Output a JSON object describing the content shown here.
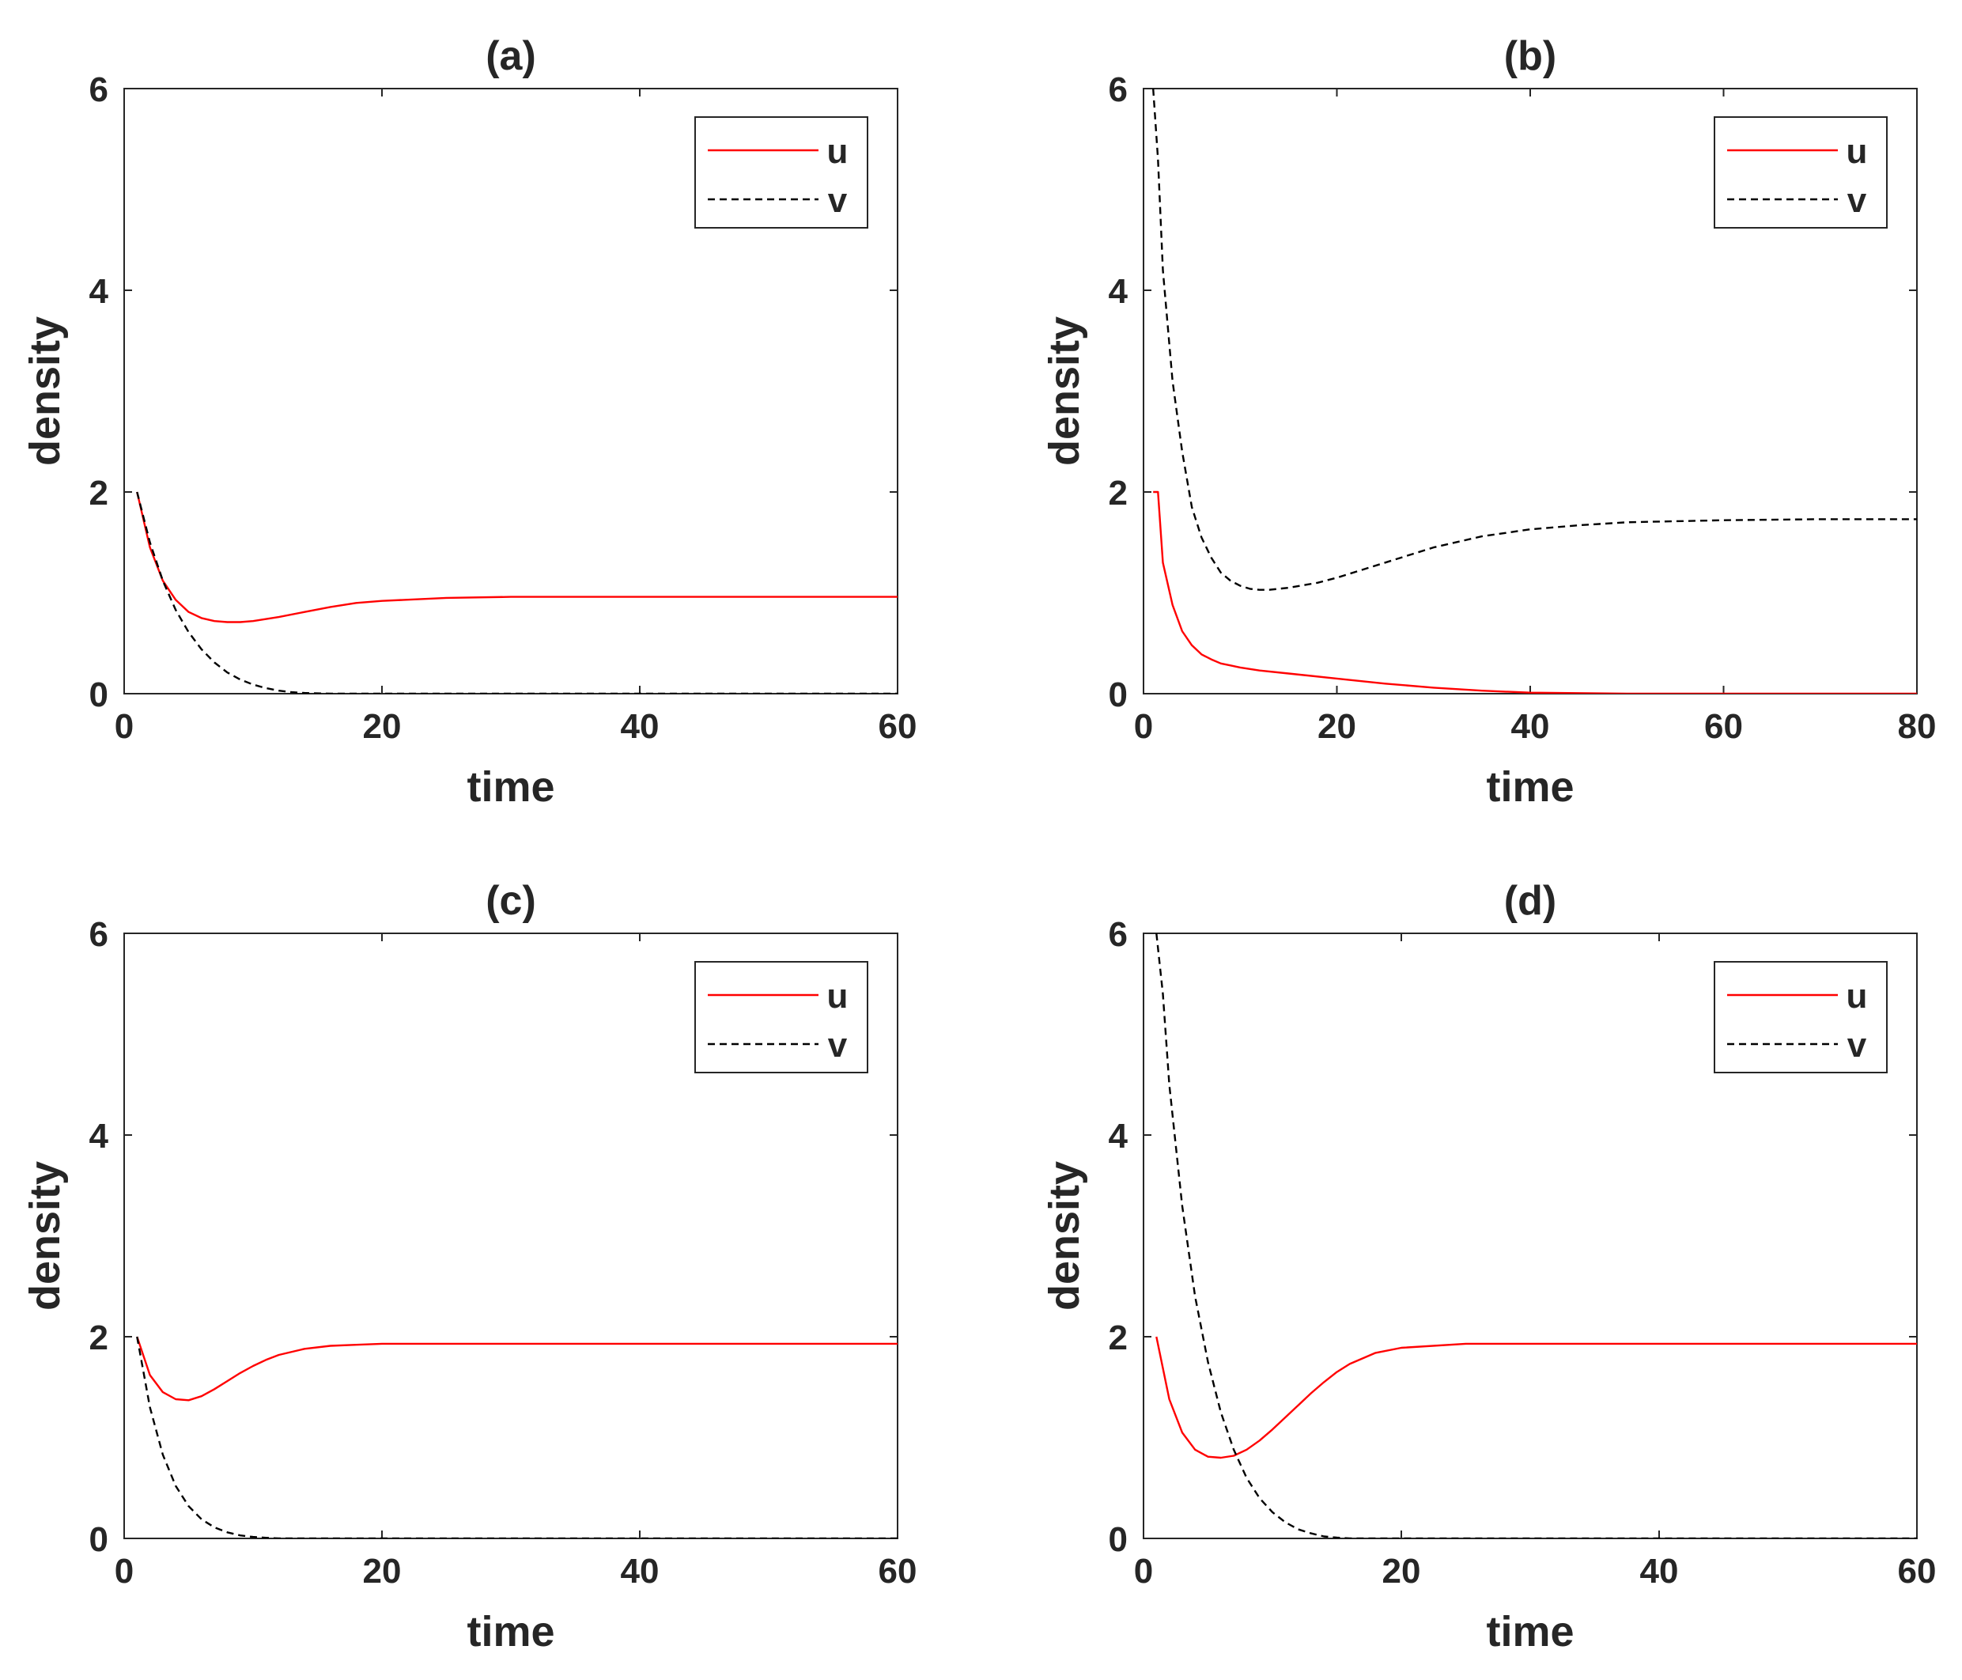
{
  "figure": {
    "layout": "2x2 grid"
  },
  "colors": {
    "u": "#ff0000",
    "v": "#000000",
    "axes": "#262626",
    "background": "#ffffff"
  },
  "chart_data": [
    {
      "id": "a",
      "type": "line",
      "title": "(a)",
      "xlabel": "time",
      "ylabel": "density",
      "xlim": [
        0,
        60
      ],
      "ylim": [
        0,
        6
      ],
      "xticks": [
        0,
        20,
        40,
        60
      ],
      "yticks": [
        0,
        2,
        4,
        6
      ],
      "xtick_labels": [
        "0",
        "20",
        "40",
        "60"
      ],
      "ytick_labels": [
        "0",
        "2",
        "4",
        "6"
      ],
      "legend": {
        "position": "top-right",
        "entries": [
          "u",
          "v"
        ]
      },
      "series": [
        {
          "name": "u",
          "style": "solid",
          "color": "#ff0000",
          "x": [
            1,
            2,
            3,
            4,
            5,
            6,
            7,
            8,
            9,
            10,
            12,
            14,
            16,
            18,
            20,
            25,
            30,
            40,
            50,
            60
          ],
          "y": [
            2.0,
            1.45,
            1.12,
            0.93,
            0.81,
            0.75,
            0.72,
            0.71,
            0.71,
            0.72,
            0.76,
            0.81,
            0.86,
            0.9,
            0.92,
            0.95,
            0.96,
            0.96,
            0.96,
            0.96
          ]
        },
        {
          "name": "v",
          "style": "dashed",
          "color": "#000000",
          "x": [
            1,
            2,
            3,
            4,
            5,
            6,
            7,
            8,
            9,
            10,
            11,
            12,
            13,
            14,
            15,
            16,
            20,
            30,
            40,
            50,
            60
          ],
          "y": [
            2.0,
            1.5,
            1.12,
            0.83,
            0.61,
            0.44,
            0.31,
            0.21,
            0.14,
            0.09,
            0.055,
            0.03,
            0.015,
            0.007,
            0.003,
            0.0,
            0.0,
            0.0,
            0.0,
            0.0,
            0.0
          ]
        }
      ]
    },
    {
      "id": "b",
      "type": "line",
      "title": "(b)",
      "xlabel": "time",
      "ylabel": "density",
      "xlim": [
        0,
        80
      ],
      "ylim": [
        0,
        6
      ],
      "xticks": [
        0,
        20,
        40,
        60,
        80
      ],
      "yticks": [
        0,
        2,
        4,
        6
      ],
      "xtick_labels": [
        "0",
        "20",
        "40",
        "60",
        "80"
      ],
      "ytick_labels": [
        "0",
        "2",
        "4",
        "6"
      ],
      "legend": {
        "position": "top-right",
        "entries": [
          "u",
          "v"
        ]
      },
      "series": [
        {
          "name": "u",
          "style": "solid",
          "color": "#ff0000",
          "x": [
            1,
            1.5,
            2,
            3,
            4,
            5,
            6,
            7,
            8,
            9,
            10,
            12,
            15,
            20,
            25,
            30,
            35,
            40,
            50,
            60,
            70,
            80
          ],
          "y": [
            2.0,
            2.0,
            1.3,
            0.88,
            0.62,
            0.48,
            0.39,
            0.34,
            0.3,
            0.28,
            0.26,
            0.23,
            0.2,
            0.15,
            0.1,
            0.06,
            0.03,
            0.01,
            0.0,
            0.0,
            0.0,
            0.0
          ]
        },
        {
          "name": "v",
          "style": "dashed",
          "color": "#000000",
          "x": [
            1,
            1.5,
            2,
            3,
            4,
            5,
            6,
            7,
            8,
            9,
            10,
            11,
            12,
            13,
            15,
            18,
            20,
            25,
            30,
            35,
            40,
            45,
            50,
            60,
            70,
            80
          ],
          "y": [
            6.0,
            5.3,
            4.2,
            3.1,
            2.4,
            1.85,
            1.55,
            1.35,
            1.2,
            1.12,
            1.07,
            1.04,
            1.03,
            1.03,
            1.05,
            1.1,
            1.15,
            1.3,
            1.45,
            1.56,
            1.63,
            1.67,
            1.7,
            1.72,
            1.73,
            1.73
          ]
        }
      ]
    },
    {
      "id": "c",
      "type": "line",
      "title": "(c)",
      "xlabel": "time",
      "ylabel": "density",
      "xlim": [
        0,
        60
      ],
      "ylim": [
        0,
        6
      ],
      "xticks": [
        0,
        20,
        40,
        60
      ],
      "yticks": [
        0,
        2,
        4,
        6
      ],
      "xtick_labels": [
        "0",
        "20",
        "40",
        "60"
      ],
      "ytick_labels": [
        "0",
        "2",
        "4",
        "6"
      ],
      "legend": {
        "position": "top-right",
        "entries": [
          "u",
          "v"
        ]
      },
      "series": [
        {
          "name": "u",
          "style": "solid",
          "color": "#ff0000",
          "x": [
            1,
            2,
            3,
            4,
            5,
            6,
            7,
            8,
            9,
            10,
            11,
            12,
            14,
            16,
            18,
            20,
            25,
            30,
            40,
            50,
            60
          ],
          "y": [
            2.0,
            1.62,
            1.45,
            1.38,
            1.37,
            1.41,
            1.48,
            1.56,
            1.64,
            1.71,
            1.77,
            1.82,
            1.88,
            1.91,
            1.92,
            1.93,
            1.93,
            1.93,
            1.93,
            1.93,
            1.93
          ]
        },
        {
          "name": "v",
          "style": "dashed",
          "color": "#000000",
          "x": [
            1,
            2,
            3,
            4,
            5,
            6,
            7,
            8,
            9,
            10,
            11,
            12,
            15,
            20,
            30,
            40,
            50,
            60
          ],
          "y": [
            2.0,
            1.3,
            0.83,
            0.52,
            0.32,
            0.19,
            0.11,
            0.06,
            0.03,
            0.015,
            0.006,
            0.0,
            0.0,
            0.0,
            0.0,
            0.0,
            0.0,
            0.0
          ]
        }
      ]
    },
    {
      "id": "d",
      "type": "line",
      "title": "(d)",
      "xlabel": "time",
      "ylabel": "density",
      "xlim": [
        0,
        60
      ],
      "ylim": [
        0,
        6
      ],
      "xticks": [
        0,
        20,
        40,
        60
      ],
      "yticks": [
        0,
        2,
        4,
        6
      ],
      "xtick_labels": [
        "0",
        "20",
        "40",
        "60"
      ],
      "ytick_labels": [
        "0",
        "2",
        "4",
        "6"
      ],
      "legend": {
        "position": "top-right",
        "entries": [
          "u",
          "v"
        ]
      },
      "series": [
        {
          "name": "u",
          "style": "solid",
          "color": "#ff0000",
          "x": [
            1,
            2,
            3,
            4,
            5,
            6,
            7,
            8,
            9,
            10,
            11,
            12,
            13,
            14,
            15,
            16,
            18,
            20,
            25,
            30,
            40,
            50,
            60
          ],
          "y": [
            2.0,
            1.38,
            1.05,
            0.88,
            0.81,
            0.8,
            0.82,
            0.88,
            0.97,
            1.08,
            1.2,
            1.32,
            1.44,
            1.55,
            1.65,
            1.73,
            1.84,
            1.89,
            1.93,
            1.93,
            1.93,
            1.93,
            1.93
          ]
        },
        {
          "name": "v",
          "style": "dashed",
          "color": "#000000",
          "x": [
            1,
            1.5,
            2,
            3,
            4,
            5,
            6,
            7,
            8,
            9,
            10,
            11,
            12,
            13,
            14,
            15,
            16,
            20,
            30,
            40,
            50,
            60
          ],
          "y": [
            6.0,
            5.4,
            4.5,
            3.3,
            2.4,
            1.75,
            1.25,
            0.88,
            0.6,
            0.4,
            0.26,
            0.16,
            0.09,
            0.05,
            0.02,
            0.008,
            0.0,
            0.0,
            0.0,
            0.0,
            0.0,
            0.0
          ]
        }
      ]
    }
  ]
}
